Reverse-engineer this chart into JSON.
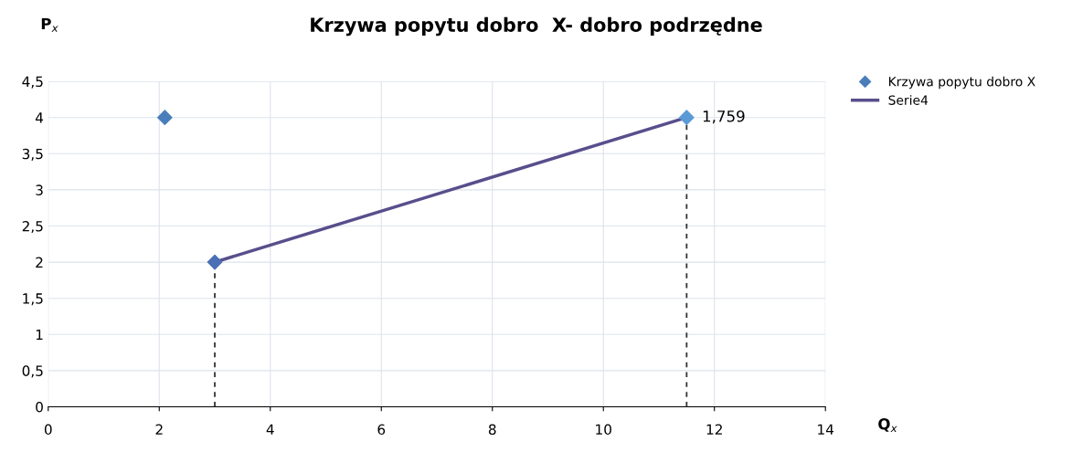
{
  "chart_data": {
    "type": "scatter",
    "title": "Krzywa popytu dobro  X- dobro podrzędne",
    "xlabel": "Q$_{x}$",
    "ylabel": "P$_{x}$",
    "series": [
      {
        "name": "Krzywa popytu dobro X",
        "x": [
          2.1,
          3,
          11.5
        ],
        "values": [
          4,
          2,
          4
        ],
        "color": "#4a7ebb",
        "colors": [
          "#4a7ebb",
          "#4a6fb5",
          "#5b9bd5"
        ],
        "marker": "diamond"
      },
      {
        "name": "Serie4",
        "type": "line",
        "x": [
          3,
          11.5
        ],
        "values": [
          2,
          4
        ],
        "color": "#594e8c",
        "marker": "none",
        "line_style": "solid"
      },
      {
        "type": "line",
        "x": [
          3,
          3
        ],
        "values": [
          0,
          2
        ],
        "color": "#333333",
        "marker": "none",
        "line_style": "dashed"
      },
      {
        "type": "line",
        "x": [
          11.5,
          11.5
        ],
        "values": [
          0,
          4
        ],
        "color": "#333333",
        "marker": "none",
        "line_style": "dashed"
      }
    ],
    "annotations": [
      {
        "text": "1,759",
        "x": 11.5,
        "y": 4
      }
    ],
    "xlim": [
      0,
      14
    ],
    "xticks": [
      0,
      2,
      4,
      6,
      8,
      10,
      12,
      14
    ],
    "ylim": [
      0,
      4.5
    ],
    "yticks": [
      {
        "value": 0,
        "label": "0"
      },
      {
        "value": 0.5,
        "label": "0,5"
      },
      {
        "value": 1,
        "label": "1"
      },
      {
        "value": 1.5,
        "label": "1,5"
      },
      {
        "value": 2,
        "label": "2"
      },
      {
        "value": 2.5,
        "label": "2,5"
      },
      {
        "value": 3,
        "label": "3"
      },
      {
        "value": 3.5,
        "label": "3,5"
      },
      {
        "value": 4,
        "label": "4"
      },
      {
        "value": 4.5,
        "label": "4,5"
      }
    ],
    "grid": true,
    "legend": "top right"
  }
}
